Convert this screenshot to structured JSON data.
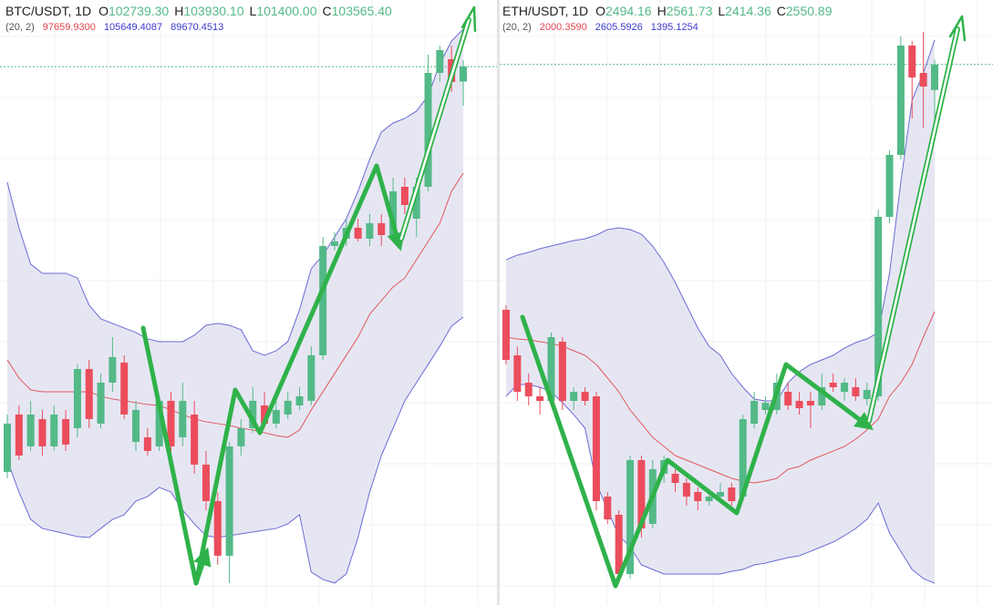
{
  "chart_data": [
    {
      "type": "candlestick",
      "title": "BTC/USDT, 1D",
      "ohlc": [
        {
          "label": "O",
          "value": "102739.30"
        },
        {
          "label": "H",
          "value": "103930.10"
        },
        {
          "label": "L",
          "value": "101400.00"
        },
        {
          "label": "C",
          "value": "103565.40"
        }
      ],
      "indicator": {
        "label": "(20, 2)",
        "values": [
          "97659.9300",
          "105649.4087",
          "89670.4513"
        ],
        "colors": [
          "#e0454f",
          "#3b3bd0",
          "#3b3bd0"
        ]
      },
      "ylim": [
        73690,
        107266
      ],
      "up_color": "#53b987",
      "down_color": "#eb4d5c",
      "candles": {
        "open": [
          81076,
          84261,
          82492,
          84008,
          82492,
          84008,
          83503,
          86789,
          83756,
          86030,
          87143,
          82744,
          82997,
          82492,
          85020,
          82997,
          84261,
          81480,
          79458,
          76425,
          82492,
          83503,
          84767,
          83756,
          84261,
          84767,
          85020,
          87548,
          93615,
          94019,
          94626,
          94019,
          94879,
          94221,
          96901,
          95131,
          96901,
          103221,
          103980,
          102739.3
        ],
        "high": [
          84261,
          84767,
          85020,
          84514,
          84767,
          84514,
          87042,
          87295,
          86536,
          88559,
          87548,
          85020,
          83503,
          85272,
          85525,
          86030,
          85020,
          82239,
          79956,
          82744,
          84008,
          85778,
          85525,
          85020,
          85525,
          85778,
          88053,
          94120,
          94373,
          95131,
          95131,
          95384,
          95384,
          97407,
          97407,
          97407,
          104232,
          104738,
          104738,
          103930.1
        ],
        "low": [
          80722,
          81733,
          82239,
          81986,
          82239,
          82239,
          82997,
          83503,
          83503,
          85525,
          84008,
          82239,
          81986,
          82239,
          81986,
          82492,
          80975,
          78952,
          75919,
          74908,
          81986,
          83250,
          83503,
          83503,
          84008,
          84514,
          84767,
          87295,
          93362,
          93615,
          93868,
          93615,
          93615,
          93868,
          95384,
          94120,
          96648,
          102716,
          102160,
          101400
        ],
        "close": [
          83756,
          81986,
          84261,
          82492,
          84261,
          82593,
          86789,
          84008,
          86030,
          87446,
          84261,
          84514,
          82239,
          85020,
          82492,
          85020,
          81480,
          79458,
          76425,
          82492,
          83503,
          85020,
          83756,
          84514,
          85020,
          85272,
          87548,
          93615,
          93868,
          94626,
          94019,
          94879,
          94221,
          96648,
          95890,
          96901,
          103221,
          104485,
          102716,
          103565.4
        ]
      },
      "bands": {
        "fill": "#e6e6f3",
        "upper": {
          "color": "#6b6bd6",
          "values": [
            97154,
            94626,
            92604,
            92098,
            92098,
            92098,
            91845,
            90328,
            89570,
            89317,
            89064,
            88812,
            88458,
            88306,
            88306,
            88306,
            88660,
            89216,
            89317,
            89216,
            88963,
            87800,
            87548,
            87800,
            88306,
            90076,
            92351,
            93108,
            94120,
            95131,
            96648,
            98418,
            99935,
            100440,
            100693,
            101098,
            101957,
            103727,
            104991,
            105649.4087
          ]
        },
        "middle": {
          "color": "#e0585d",
          "values": [
            87295,
            86284,
            85627,
            85525,
            85525,
            85525,
            85525,
            85525,
            85272,
            85121,
            85020,
            84919,
            84818,
            84767,
            84514,
            84261,
            84008,
            83857,
            83756,
            83655,
            83503,
            83402,
            83250,
            83098,
            82997,
            83402,
            84514,
            85525,
            86536,
            87548,
            88559,
            89823,
            90581,
            91340,
            91845,
            92856,
            93868,
            94879,
            96648,
            97659.93
          ]
        },
        "lower": {
          "color": "#6b6bd6",
          "values": [
            81733,
            79956,
            78439,
            77941,
            77790,
            77638,
            77486,
            77436,
            77941,
            78439,
            78700,
            79458,
            79711,
            80216,
            79956,
            78952,
            78194,
            77537,
            77436,
            77537,
            77638,
            77740,
            77841,
            77941,
            78194,
            78700,
            75514,
            75110,
            74908,
            75413,
            77436,
            79956,
            81986,
            83503,
            85020,
            86030,
            87042,
            88053,
            89165,
            89670.4513
          ]
        }
      }
    },
    {
      "type": "candlestick",
      "title": "ETH/USDT, 1D",
      "ohlc": [
        {
          "label": "O",
          "value": "2494.16"
        },
        {
          "label": "H",
          "value": "2561.73"
        },
        {
          "label": "L",
          "value": "2414.36"
        },
        {
          "label": "C",
          "value": "2550.89"
        }
      ],
      "indicator": {
        "label": "(20, 2)",
        "values": [
          "2000.3590",
          "2605.5926",
          "1395.1254"
        ],
        "colors": [
          "#e0454f",
          "#3b3bd0",
          "#3b3bd0"
        ]
      },
      "ylim": [
        1346.7,
        2694.6
      ],
      "up_color": "#53b987",
      "down_color": "#eb4d5c",
      "candles": {
        "open": [
          2004.4,
          1902.9,
          1842.0,
          1811.6,
          1801.4,
          1933.4,
          1801.4,
          1821.7,
          1811.6,
          1588.2,
          1547.7,
          1415.7,
          1669.5,
          1527.4,
          1639.0,
          1639.0,
          1618.7,
          1598.4,
          1578.1,
          1588.2,
          1608.5,
          1588.2,
          1750.7,
          1781.1,
          1781.1,
          1821.7,
          1801.4,
          1801.4,
          1791.2,
          1842.0,
          1821.7,
          1831.9,
          1805.5,
          1811.6,
          2211.5,
          2349.5,
          2593.1,
          2532.2,
          2494.16
        ],
        "high": [
          2014.5,
          1923.2,
          1862.3,
          1831.9,
          1953.7,
          1943.5,
          1831.9,
          1831.9,
          1821.7,
          1598.4,
          1557.8,
          1679.6,
          1679.6,
          1669.5,
          1679.6,
          1649.2,
          1628.9,
          1608.5,
          1598.4,
          1618.7,
          1618.7,
          1770.9,
          1821.7,
          1811.6,
          1862.3,
          1842.0,
          1821.7,
          1821.7,
          1862.3,
          1862.3,
          1852.2,
          1852.2,
          1842.0,
          2227.7,
          2359.6,
          2613.4,
          2603.2,
          2623.5,
          2561.73
        ],
        "low": [
          1882.6,
          1801.4,
          1791.2,
          1770.9,
          1791.2,
          1781.1,
          1781.1,
          1791.2,
          1557.8,
          1527.4,
          1395.4,
          1405.6,
          1496.9,
          1517.2,
          1618.7,
          1598.4,
          1567.9,
          1557.8,
          1567.9,
          1578.1,
          1567.9,
          1578.1,
          1740.5,
          1770.9,
          1770.9,
          1781.1,
          1770.9,
          1740.5,
          1781.1,
          1821.7,
          1801.4,
          1801.4,
          1791.2,
          1801.4,
          2197.2,
          2339.3,
          2430.7,
          2410.4,
          2414.36
        ],
        "close": [
          1892.8,
          1821.7,
          1811.6,
          1801.4,
          1943.5,
          1801.4,
          1821.7,
          1801.4,
          1578.1,
          1537.5,
          1415.7,
          1669.5,
          1517.2,
          1649.2,
          1669.5,
          1618.7,
          1588.2,
          1578.1,
          1588.2,
          1598.4,
          1578.1,
          1760.8,
          1801.4,
          1797.3,
          1842.0,
          1791.2,
          1785.2,
          1791.2,
          1831.9,
          1831.9,
          1842.0,
          1811.6,
          1825.8,
          2211.5,
          2349.5,
          2593.1,
          2522.0,
          2501.8,
          2550.89
        ]
      },
      "bands": {
        "fill": "#e6e6f3",
        "upper": {
          "color": "#6b6bd6",
          "values": [
            2116.0,
            2126.2,
            2132.3,
            2140.4,
            2146.5,
            2152.6,
            2158.7,
            2162.7,
            2170.9,
            2183.0,
            2187.1,
            2183.0,
            2172.9,
            2146.5,
            2110.0,
            2065.3,
            2014.5,
            1963.8,
            1923.2,
            1902.9,
            1862.3,
            1831.9,
            1805.5,
            1801.4,
            1801.4,
            1842.0,
            1866.4,
            1882.6,
            1892.8,
            1902.9,
            1919.1,
            1931.3,
            1939.4,
            1953.7,
            2085.6,
            2288.6,
            2471.3,
            2532.2,
            2605.5926
          ]
        },
        "middle": {
          "color": "#e0585d",
          "values": [
            1943.5,
            1939.4,
            1937.4,
            1933.4,
            1929.3,
            1923.2,
            1913.1,
            1902.9,
            1882.6,
            1852.2,
            1821.7,
            1781.1,
            1750.7,
            1720.2,
            1699.9,
            1679.6,
            1669.5,
            1659.3,
            1649.2,
            1639.0,
            1628.9,
            1622.8,
            1618.7,
            1622.8,
            1628.9,
            1649.2,
            1655.2,
            1669.5,
            1679.6,
            1689.7,
            1699.9,
            1716.1,
            1736.4,
            1760.8,
            1811.6,
            1842.0,
            1882.6,
            1943.5,
            2000.359
          ]
        },
        "lower": {
          "color": "#6b6bd6",
          "values": [
            1811.6,
            1837.9,
            1837.9,
            1831.9,
            1821.7,
            1797.3,
            1770.9,
            1740.5,
            1618.7,
            1557.8,
            1501.0,
            1476.6,
            1436.0,
            1425.9,
            1415.7,
            1415.7,
            1415.7,
            1415.7,
            1415.7,
            1415.7,
            1421.8,
            1425.9,
            1436.0,
            1440.1,
            1446.2,
            1452.2,
            1456.3,
            1466.4,
            1476.6,
            1486.8,
            1501.0,
            1517.2,
            1537.5,
            1574.0,
            1507.1,
            1466.4,
            1425.9,
            1405.6,
            1395.1254
          ]
        }
      }
    }
  ]
}
